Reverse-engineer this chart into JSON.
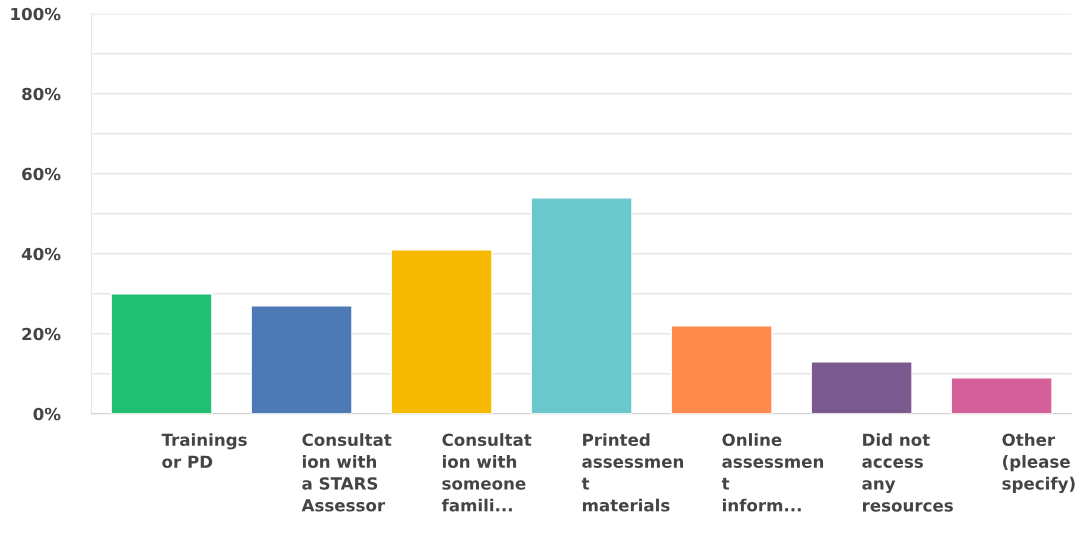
{
  "chart_data": {
    "type": "bar",
    "categories": [
      "Trainings\nor PD",
      "Consultat\nion with\na STARS\nAssessor",
      "Consultat\nion with\nsomeone\nfamili...",
      "Printed\nassessmen\nt\nmaterials",
      "Online\nassessmen\nt\ninform...",
      "Did not\naccess\nany\nresources",
      "Other\n(please\nspecify)"
    ],
    "values": [
      30,
      27,
      41,
      54,
      22,
      13,
      9
    ],
    "colors": [
      "#21bf73",
      "#4d7ab5",
      "#f6bb00",
      "#6bc8cc",
      "#ff8a4c",
      "#7b5a8f",
      "#d55f98"
    ],
    "ylim": [
      0,
      100
    ],
    "yticks": [
      {
        "value": 0,
        "label": "0%"
      },
      {
        "value": 10,
        "label": null
      },
      {
        "value": 20,
        "label": "20%"
      },
      {
        "value": 30,
        "label": null
      },
      {
        "value": 40,
        "label": "40%"
      },
      {
        "value": 50,
        "label": null
      },
      {
        "value": 60,
        "label": "60%"
      },
      {
        "value": 70,
        "label": null
      },
      {
        "value": 80,
        "label": "80%"
      },
      {
        "value": 90,
        "label": null
      },
      {
        "value": 100,
        "label": "100%"
      }
    ],
    "grid": "y"
  }
}
